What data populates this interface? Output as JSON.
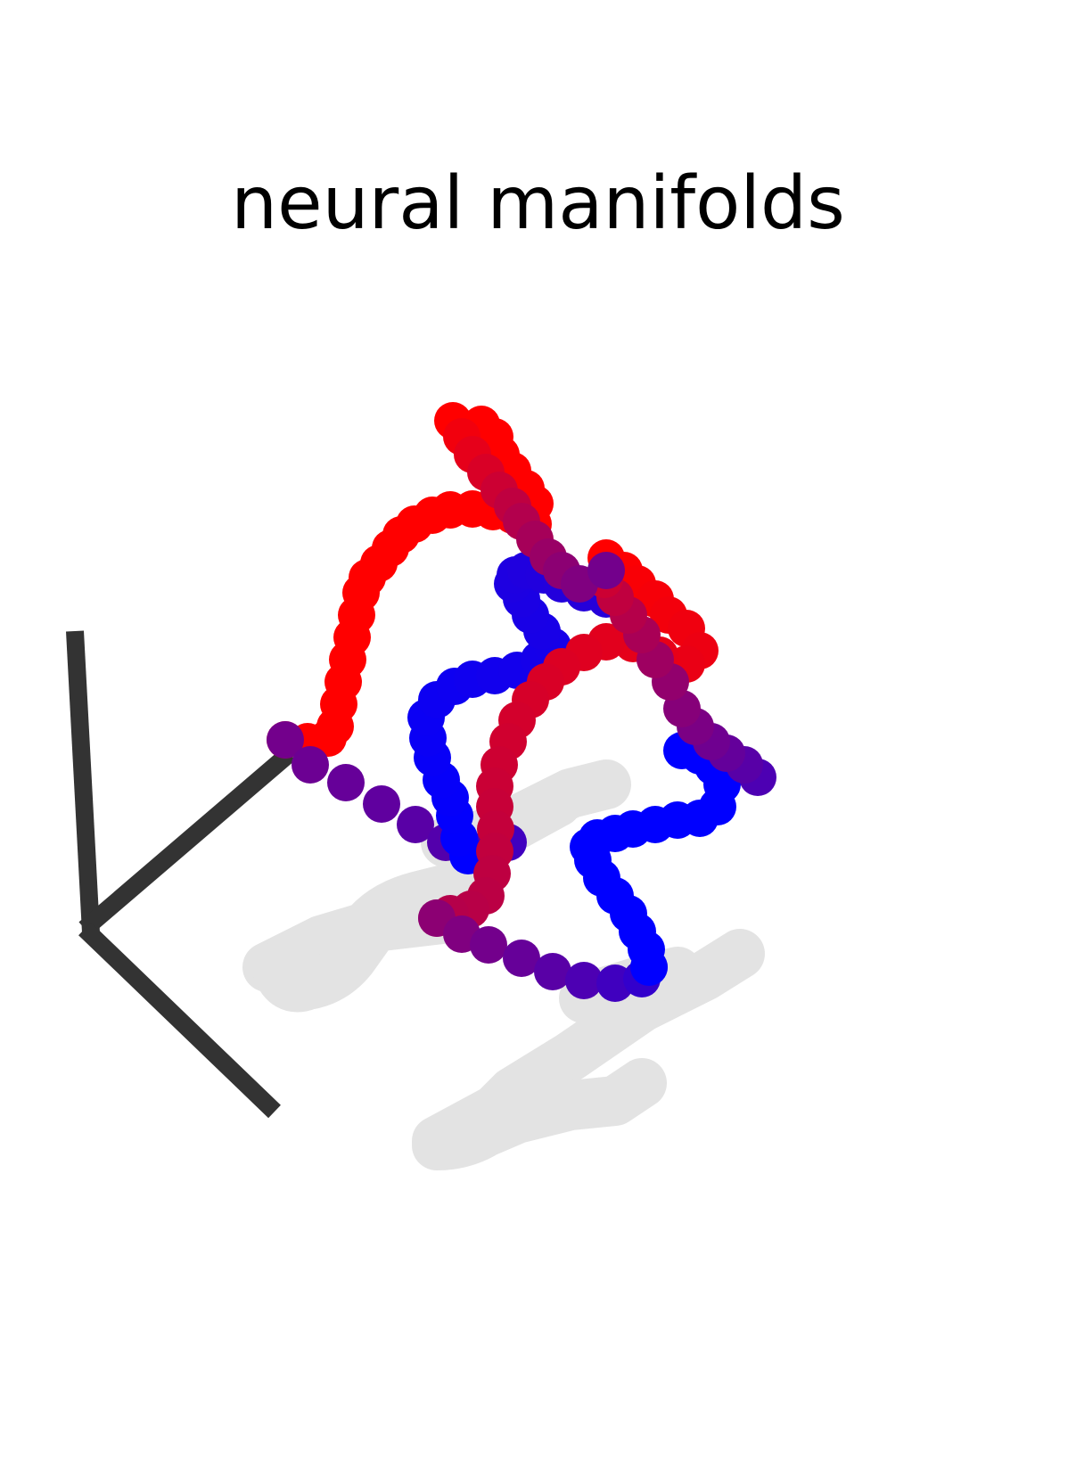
{
  "title": "neural manifolds",
  "colors": {
    "trajectory_start": "#0000ff",
    "trajectory_end": "#ff0000",
    "trajectory_mix": "#660099",
    "shadow": "#e3e3e3",
    "axes": "#333333",
    "background": "#ffffff"
  }
}
